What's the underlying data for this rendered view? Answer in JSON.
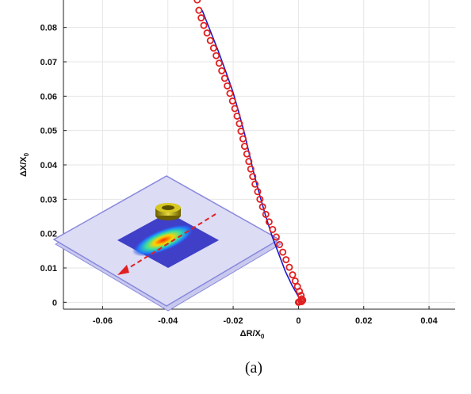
{
  "chart_data": {
    "type": "scatter",
    "xlabel": "ΔR/X",
    "xlabel_sub": "0",
    "ylabel": "ΔX/X",
    "ylabel_sub": "0",
    "caption": "(a)",
    "xlim": [
      -0.072,
      0.048
    ],
    "ylim": [
      -0.002,
      0.088
    ],
    "xticks": [
      -0.06,
      -0.04,
      -0.02,
      0,
      0.02,
      0.04
    ],
    "xtick_labels": [
      "-0.06",
      "-0.04",
      "-0.02",
      "0",
      "0.02",
      "0.04"
    ],
    "yticks": [
      0,
      0.01,
      0.02,
      0.03,
      0.04,
      0.05,
      0.06,
      0.07,
      0.08
    ],
    "ytick_labels": [
      "0",
      "0.01",
      "0.02",
      "0.03",
      "0.04",
      "0.05",
      "0.06",
      "0.07",
      "0.08"
    ],
    "grid": true,
    "series": [
      {
        "kind": "line",
        "color": "#1a1acc",
        "x": [
          -0.0295,
          -0.027,
          -0.0245,
          -0.0222,
          -0.02,
          -0.0182,
          -0.0165,
          -0.015,
          -0.0135,
          -0.0118,
          -0.01,
          -0.008,
          -0.006,
          -0.004,
          -0.002,
          -0.0002,
          0.0005,
          0.0005
        ],
        "y": [
          0.085,
          0.079,
          0.073,
          0.067,
          0.061,
          0.055,
          0.049,
          0.043,
          0.037,
          0.031,
          0.025,
          0.019,
          0.014,
          0.009,
          0.005,
          0.002,
          0.0005,
          0.0
        ]
      },
      {
        "kind": "markers",
        "marker": "circle-open",
        "color": "#e02020",
        "x": [
          -0.031,
          -0.0305,
          -0.0298,
          -0.029,
          -0.028,
          -0.027,
          -0.026,
          -0.0252,
          -0.0243,
          -0.0235,
          -0.0226,
          -0.0218,
          -0.021,
          -0.0202,
          -0.0195,
          -0.0188,
          -0.0181,
          -0.0176,
          -0.017,
          -0.0165,
          -0.0158,
          -0.0152,
          -0.0146,
          -0.014,
          -0.0133,
          -0.0125,
          -0.0118,
          -0.011,
          -0.01,
          -0.009,
          -0.0079,
          -0.0068,
          -0.0058,
          -0.0048,
          -0.0038,
          -0.0028,
          -0.0018,
          -0.001,
          -0.0003,
          0.0003,
          0.0008,
          0.001,
          0.0008,
          0.0003,
          0.0,
          0.001,
          0.0013
        ],
        "y": [
          0.088,
          0.085,
          0.0828,
          0.0806,
          0.0784,
          0.0762,
          0.074,
          0.0718,
          0.0696,
          0.0674,
          0.0652,
          0.063,
          0.0608,
          0.0586,
          0.0564,
          0.0542,
          0.052,
          0.0498,
          0.0476,
          0.0454,
          0.0432,
          0.041,
          0.0388,
          0.0366,
          0.0344,
          0.0322,
          0.03,
          0.0278,
          0.0256,
          0.0234,
          0.0212,
          0.019,
          0.0168,
          0.0146,
          0.0124,
          0.0102,
          0.008,
          0.0062,
          0.0046,
          0.0032,
          0.002,
          0.001,
          0.0005,
          0.0002,
          0.0,
          0.0002,
          0.0006
        ]
      }
    ],
    "inset": {
      "description_icon": "device-with-ring-resonator-and-heatmap",
      "plate_color": "#dcdcf5",
      "plate_edge_color": "#8888dd",
      "patch_color": "#3f3fc8",
      "ring_color": "#b8a800",
      "arrow_color": "#e02020"
    }
  }
}
